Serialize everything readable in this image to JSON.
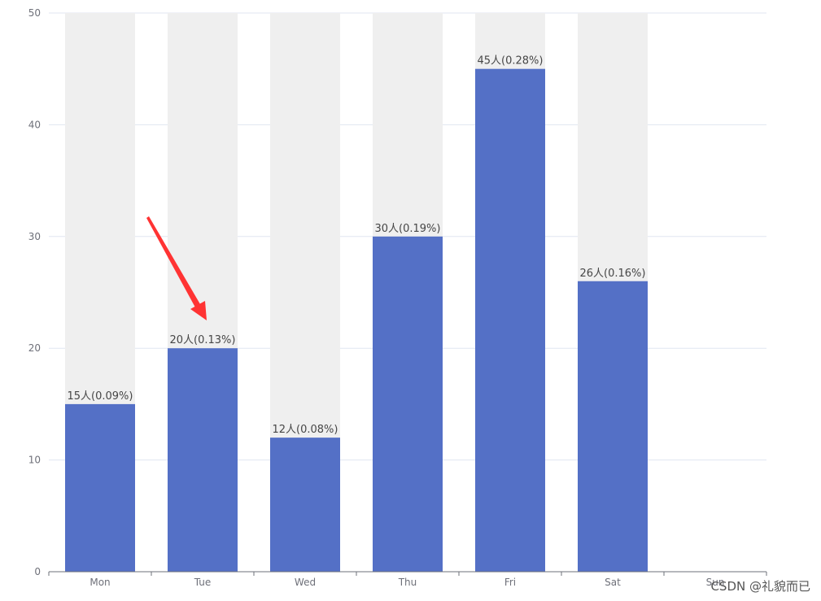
{
  "chart_data": {
    "type": "bar",
    "categories": [
      "Mon",
      "Tue",
      "Wed",
      "Thu",
      "Fri",
      "Sat",
      "Sun"
    ],
    "series": [
      {
        "values": [
          15,
          20,
          12,
          30,
          45,
          26,
          null
        ],
        "data_labels": [
          "15人(0.09%)",
          "20人(0.13%)",
          "12人(0.08%)",
          "30人(0.19%)",
          "45人(0.28%)",
          "26人(0.16%)",
          ""
        ]
      }
    ],
    "background_bar_shown": [
      true,
      true,
      true,
      true,
      true,
      true,
      false
    ],
    "title": "",
    "xlabel": "",
    "ylabel": "",
    "ylim": [
      0,
      50
    ],
    "yticks": [
      0,
      10,
      20,
      30,
      40,
      50
    ],
    "grid": true,
    "legend": "none",
    "colors": {
      "bar": "#5470c6",
      "background_bar": "#efefef",
      "grid_line": "#e0e6f1",
      "axis_line": "#6e7079",
      "annotation_arrow": "#ff3333"
    },
    "annotations": [
      {
        "type": "arrow",
        "points_to": "Tue"
      }
    ]
  },
  "watermark": {
    "text": "CSDN @礼貌而已"
  }
}
